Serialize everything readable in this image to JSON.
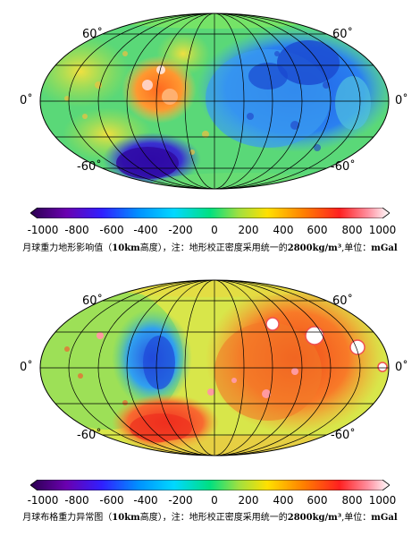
{
  "panels": [
    {
      "lat_labels": {
        "north_left": "60˚",
        "north_right": "60˚",
        "equator_left": "0˚",
        "equator_right": "0˚",
        "south_left": "-60˚",
        "south_right": "-60˚"
      },
      "colorbar_ticks": [
        "-1000",
        "-800",
        "-600",
        "-400",
        "-200",
        "0",
        "200",
        "400",
        "600",
        "800",
        "1000"
      ],
      "caption": {
        "prefix": "月球重力地形影响值（",
        "height": "10km",
        "mid": "高度），注：地形校正密度采用统一的",
        "density": "2800kg/m³",
        "suffix": ",单位：",
        "unit": "mGal"
      },
      "colors": {
        "base": "#56e07a",
        "low": "#1a3cd6",
        "verylow": "#3a10a0",
        "high": "#f57a2a",
        "veryhigh": "#ffffff"
      }
    },
    {
      "lat_labels": {
        "north_left": "60˚",
        "north_right": "60˚",
        "equator_left": "0˚",
        "equator_right": "0˚",
        "south_left": "-60˚",
        "south_right": "-60˚"
      },
      "colorbar_ticks": [
        "-1000",
        "-800",
        "-600",
        "-400",
        "-200",
        "0",
        "200",
        "400",
        "600",
        "800",
        "1000"
      ],
      "caption": {
        "prefix": "月球布格重力异常图（",
        "height": "10km",
        "mid": "高度），注：地形校正密度采用统一的",
        "density": "2800kg/m³",
        "suffix": ",单位：",
        "unit": "mGal"
      },
      "colors": {
        "base": "#c9e64a",
        "low": "#2a7ae0",
        "verylow": "#2a40d0",
        "high": "#f0581e",
        "veryhigh": "#ffffff"
      }
    }
  ],
  "colorbar_stops": [
    "#2b0050",
    "#6a00b0",
    "#3020ff",
    "#0090ff",
    "#00d8ff",
    "#00e080",
    "#a0e040",
    "#ffe000",
    "#ff8000",
    "#ff2020",
    "#ff90a0",
    "#ffffff"
  ]
}
